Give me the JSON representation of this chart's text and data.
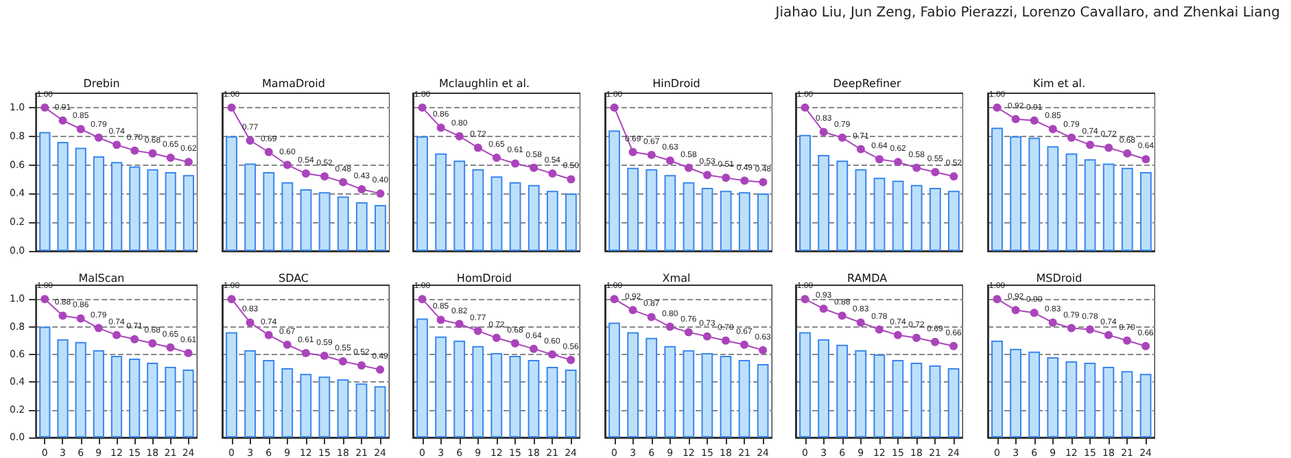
{
  "chart_data": [
    {
      "type": "bar",
      "title": "Drebin",
      "annotations": [
        "Jiahao Liu, Jun Zeng, Fabio Pierazzi, Lorenzo Cavallaro, and Zhenkai Liang"
      ],
      "categories": [
        "0",
        "3",
        "6",
        "9",
        "12",
        "15",
        "18",
        "21",
        "24"
      ],
      "ylim": [
        0,
        1.1
      ],
      "yticks": [
        {
          "value": 0,
          "label": "0.0"
        },
        {
          "value": 0.2,
          "label": "0.2"
        },
        {
          "value": 0.4,
          "label": "0.4"
        },
        {
          "value": 0.6,
          "label": "0.6"
        },
        {
          "value": 0.8,
          "label": "0.8"
        },
        {
          "value": 1,
          "label": "1.0"
        }
      ],
      "grid": "y",
      "marker": "circle",
      "tick_labels": "y",
      "series": [
        {
          "color": "#bde0fa",
          "values": [
            0.83,
            0.76,
            0.72,
            0.66,
            0.62,
            0.59,
            0.57,
            0.55,
            0.53
          ]
        },
        {
          "type": "line",
          "color": "#aa44bb",
          "values": [
            1.0,
            0.91,
            0.85,
            0.79,
            0.74,
            0.7,
            0.68,
            0.65,
            0.62
          ],
          "value_labels": [
            "1.00",
            "0.91",
            "0.85",
            "0.79",
            "0.74",
            "0.70",
            "0.68",
            "0.65",
            "0.62"
          ]
        }
      ]
    },
    {
      "type": "bar",
      "title": "MamaDroid",
      "categories": [
        "0",
        "3",
        "6",
        "9",
        "12",
        "15",
        "18",
        "21",
        "24"
      ],
      "ylim": [
        0,
        1.1
      ],
      "yticks": [
        0,
        0.2,
        0.4,
        0.6,
        0.8,
        1
      ],
      "grid": "y",
      "marker": "circle",
      "tick_labels": false,
      "series": [
        {
          "color": "#bde0fa",
          "values": [
            0.8,
            0.61,
            0.55,
            0.48,
            0.43,
            0.41,
            0.38,
            0.34,
            0.32
          ]
        },
        {
          "type": "line",
          "color": "#aa44bb",
          "values": [
            1.0,
            0.77,
            0.69,
            0.6,
            0.54,
            0.52,
            0.48,
            0.43,
            0.4
          ],
          "value_labels": [
            "1.00",
            "0.77",
            "0.69",
            "0.60",
            "0.54",
            "0.52",
            "0.48",
            "0.43",
            "0.40"
          ]
        }
      ]
    },
    {
      "type": "bar",
      "title": "Mclaughlin et al.",
      "categories": [
        "0",
        "3",
        "6",
        "9",
        "12",
        "15",
        "18",
        "21",
        "24"
      ],
      "ylim": [
        0,
        1.1
      ],
      "yticks": [
        0,
        0.2,
        0.4,
        0.6,
        0.8,
        1
      ],
      "grid": "y",
      "marker": "circle",
      "tick_labels": false,
      "series": [
        {
          "color": "#bde0fa",
          "values": [
            0.8,
            0.68,
            0.63,
            0.57,
            0.52,
            0.48,
            0.46,
            0.42,
            0.4
          ]
        },
        {
          "type": "line",
          "color": "#aa44bb",
          "values": [
            1.0,
            0.86,
            0.8,
            0.72,
            0.65,
            0.61,
            0.58,
            0.54,
            0.5
          ],
          "value_labels": [
            "1.00",
            "0.86",
            "0.80",
            "0.72",
            "0.65",
            "0.61",
            "0.58",
            "0.54",
            "0.50"
          ]
        }
      ]
    },
    {
      "type": "bar",
      "title": "HinDroid",
      "categories": [
        "0",
        "3",
        "6",
        "9",
        "12",
        "15",
        "18",
        "21",
        "24"
      ],
      "ylim": [
        0,
        1.1
      ],
      "yticks": [
        0,
        0.2,
        0.4,
        0.6,
        0.8,
        1
      ],
      "grid": "y",
      "marker": "circle",
      "tick_labels": false,
      "series": [
        {
          "color": "#bde0fa",
          "values": [
            0.84,
            0.58,
            0.57,
            0.53,
            0.48,
            0.44,
            0.42,
            0.41,
            0.4
          ]
        },
        {
          "type": "line",
          "color": "#aa44bb",
          "values": [
            1.0,
            0.69,
            0.67,
            0.63,
            0.58,
            0.53,
            0.51,
            0.49,
            0.48
          ],
          "value_labels": [
            "1.00",
            "0.69",
            "0.67",
            "0.63",
            "0.58",
            "0.53",
            "0.51",
            "0.49",
            "0.48"
          ]
        }
      ]
    },
    {
      "type": "bar",
      "title": "DeepRefiner",
      "categories": [
        "0",
        "3",
        "6",
        "9",
        "12",
        "15",
        "18",
        "21",
        "24"
      ],
      "ylim": [
        0,
        1.1
      ],
      "yticks": [
        0,
        0.2,
        0.4,
        0.6,
        0.8,
        1
      ],
      "grid": "y",
      "marker": "circle",
      "tick_labels": false,
      "series": [
        {
          "color": "#bde0fa",
          "values": [
            0.81,
            0.67,
            0.63,
            0.57,
            0.51,
            0.49,
            0.46,
            0.44,
            0.42
          ]
        },
        {
          "type": "line",
          "color": "#aa44bb",
          "values": [
            1.0,
            0.83,
            0.79,
            0.71,
            0.64,
            0.62,
            0.58,
            0.55,
            0.52
          ],
          "value_labels": [
            "1.00",
            "0.83",
            "0.79",
            "0.71",
            "0.64",
            "0.62",
            "0.58",
            "0.55",
            "0.52"
          ]
        }
      ]
    },
    {
      "type": "bar",
      "title": "Kim et al.",
      "categories": [
        "0",
        "3",
        "6",
        "9",
        "12",
        "15",
        "18",
        "21",
        "24"
      ],
      "ylim": [
        0,
        1.1
      ],
      "yticks": [
        0,
        0.2,
        0.4,
        0.6,
        0.8,
        1
      ],
      "grid": "y",
      "marker": "circle",
      "tick_labels": false,
      "series": [
        {
          "color": "#bde0fa",
          "values": [
            0.86,
            0.8,
            0.79,
            0.73,
            0.68,
            0.64,
            0.61,
            0.58,
            0.55
          ]
        },
        {
          "type": "line",
          "color": "#aa44bb",
          "values": [
            1.0,
            0.92,
            0.91,
            0.85,
            0.79,
            0.74,
            0.72,
            0.68,
            0.64
          ],
          "value_labels": [
            "1.00",
            "0.92",
            "0.91",
            "0.85",
            "0.79",
            "0.74",
            "0.72",
            "0.68",
            "0.64"
          ]
        }
      ]
    },
    {
      "type": "bar",
      "title": "MalScan",
      "categories": [
        "0",
        "3",
        "6",
        "9",
        "12",
        "15",
        "18",
        "21",
        "24"
      ],
      "ylim": [
        0,
        1.1
      ],
      "yticks": [
        {
          "value": 0,
          "label": "0.0"
        },
        {
          "value": 0.2,
          "label": "0.2"
        },
        {
          "value": 0.4,
          "label": "0.4"
        },
        {
          "value": 0.6,
          "label": "0.6"
        },
        {
          "value": 0.8,
          "label": "0.8"
        },
        {
          "value": 1,
          "label": "1.0"
        }
      ],
      "grid": "y",
      "marker": "circle",
      "series": [
        {
          "color": "#bde0fa",
          "values": [
            0.8,
            0.71,
            0.69,
            0.63,
            0.59,
            0.57,
            0.54,
            0.51,
            0.49
          ]
        },
        {
          "type": "line",
          "color": "#aa44bb",
          "values": [
            1.0,
            0.88,
            0.86,
            0.79,
            0.74,
            0.71,
            0.68,
            0.65,
            0.61
          ],
          "value_labels": [
            "1.00",
            "0.88",
            "0.86",
            "0.79",
            "0.74",
            "0.71",
            "0.68",
            "0.65",
            "0.61"
          ]
        }
      ]
    },
    {
      "type": "bar",
      "title": "SDAC",
      "categories": [
        "0",
        "3",
        "6",
        "9",
        "12",
        "15",
        "18",
        "21",
        "24"
      ],
      "ylim": [
        0,
        1.1
      ],
      "yticks": [
        0,
        0.2,
        0.4,
        0.6,
        0.8,
        1
      ],
      "grid": "y",
      "marker": "circle",
      "tick_labels": "x",
      "series": [
        {
          "color": "#bde0fa",
          "values": [
            0.76,
            0.63,
            0.56,
            0.5,
            0.46,
            0.44,
            0.42,
            0.39,
            0.37
          ]
        },
        {
          "type": "line",
          "color": "#aa44bb",
          "values": [
            1.0,
            0.83,
            0.74,
            0.67,
            0.61,
            0.59,
            0.55,
            0.52,
            0.49
          ],
          "value_labels": [
            "1.00",
            "0.83",
            "0.74",
            "0.67",
            "0.61",
            "0.59",
            "0.55",
            "0.52",
            "0.49"
          ]
        }
      ]
    },
    {
      "type": "bar",
      "title": "HomDroid",
      "categories": [
        "0",
        "3",
        "6",
        "9",
        "12",
        "15",
        "18",
        "21",
        "24"
      ],
      "ylim": [
        0,
        1.1
      ],
      "yticks": [
        0,
        0.2,
        0.4,
        0.6,
        0.8,
        1
      ],
      "grid": "y",
      "marker": "circle",
      "tick_labels": "x",
      "series": [
        {
          "color": "#bde0fa",
          "values": [
            0.86,
            0.73,
            0.7,
            0.66,
            0.61,
            0.59,
            0.56,
            0.51,
            0.49
          ]
        },
        {
          "type": "line",
          "color": "#aa44bb",
          "values": [
            1.0,
            0.85,
            0.82,
            0.77,
            0.72,
            0.68,
            0.64,
            0.6,
            0.56
          ],
          "value_labels": [
            "1.00",
            "0.85",
            "0.82",
            "0.77",
            "0.72",
            "0.68",
            "0.64",
            "0.60",
            "0.56"
          ]
        }
      ]
    },
    {
      "type": "bar",
      "title": "Xmal",
      "categories": [
        "0",
        "3",
        "6",
        "9",
        "12",
        "15",
        "18",
        "21",
        "24"
      ],
      "ylim": [
        0,
        1.1
      ],
      "yticks": [
        0,
        0.2,
        0.4,
        0.6,
        0.8,
        1
      ],
      "grid": "y",
      "marker": "circle",
      "tick_labels": "x",
      "series": [
        {
          "color": "#bde0fa",
          "values": [
            0.83,
            0.76,
            0.72,
            0.66,
            0.63,
            0.61,
            0.59,
            0.56,
            0.53
          ]
        },
        {
          "type": "line",
          "color": "#aa44bb",
          "values": [
            1.0,
            0.92,
            0.87,
            0.8,
            0.76,
            0.73,
            0.7,
            0.67,
            0.63
          ],
          "value_labels": [
            "1.00",
            "0.92",
            "0.87",
            "0.80",
            "0.76",
            "0.73",
            "0.70",
            "0.67",
            "0.63"
          ]
        }
      ]
    },
    {
      "type": "bar",
      "title": "RAMDA",
      "categories": [
        "0",
        "3",
        "6",
        "9",
        "12",
        "15",
        "18",
        "21",
        "24"
      ],
      "ylim": [
        0,
        1.1
      ],
      "yticks": [
        0,
        0.2,
        0.4,
        0.6,
        0.8,
        1
      ],
      "grid": "y",
      "marker": "circle",
      "tick_labels": "x",
      "series": [
        {
          "color": "#bde0fa",
          "values": [
            0.76,
            0.71,
            0.67,
            0.63,
            0.6,
            0.56,
            0.54,
            0.52,
            0.5
          ]
        },
        {
          "type": "line",
          "color": "#aa44bb",
          "values": [
            1.0,
            0.93,
            0.88,
            0.83,
            0.78,
            0.74,
            0.72,
            0.69,
            0.66
          ],
          "value_labels": [
            "1.00",
            "0.93",
            "0.88",
            "0.83",
            "0.78",
            "0.74",
            "0.72",
            "0.69",
            "0.66"
          ]
        }
      ]
    },
    {
      "type": "bar",
      "title": "MSDroid",
      "categories": [
        "0",
        "3",
        "6",
        "9",
        "12",
        "15",
        "18",
        "21",
        "24"
      ],
      "ylim": [
        0,
        1.1
      ],
      "yticks": [
        0,
        0.2,
        0.4,
        0.6,
        0.8,
        1
      ],
      "grid": "y",
      "marker": "circle",
      "tick_labels": "x",
      "series": [
        {
          "color": "#bde0fa",
          "values": [
            0.7,
            0.64,
            0.62,
            0.58,
            0.55,
            0.54,
            0.51,
            0.48,
            0.46
          ]
        },
        {
          "type": "line",
          "color": "#aa44bb",
          "values": [
            1.0,
            0.92,
            0.9,
            0.83,
            0.79,
            0.78,
            0.74,
            0.7,
            0.66
          ],
          "value_labels": [
            "1.00",
            "0.92",
            "0.90",
            "0.83",
            "0.79",
            "0.78",
            "0.74",
            "0.70",
            "0.66"
          ]
        }
      ]
    }
  ]
}
